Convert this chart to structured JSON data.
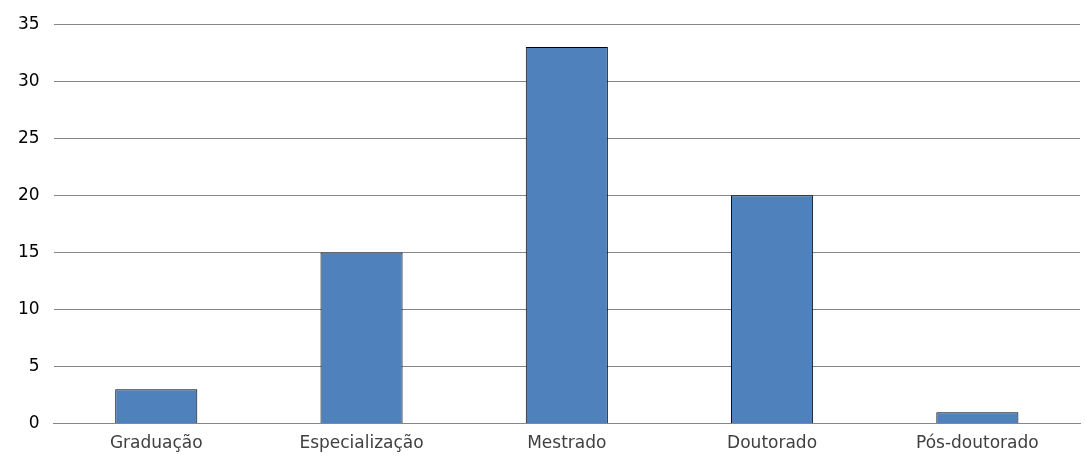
{
  "chart_data": {
    "type": "bar",
    "categories": [
      "Graduação",
      "Especialização",
      "Mestrado",
      "Doutorado",
      "Pós-doutorado"
    ],
    "values": [
      3,
      15,
      33,
      20,
      1
    ],
    "color": "#4f81bd",
    "ylim": [
      0,
      35
    ],
    "yticks": [
      0,
      5,
      10,
      15,
      20,
      25,
      30,
      35
    ],
    "grid": "y",
    "legend": false
  }
}
